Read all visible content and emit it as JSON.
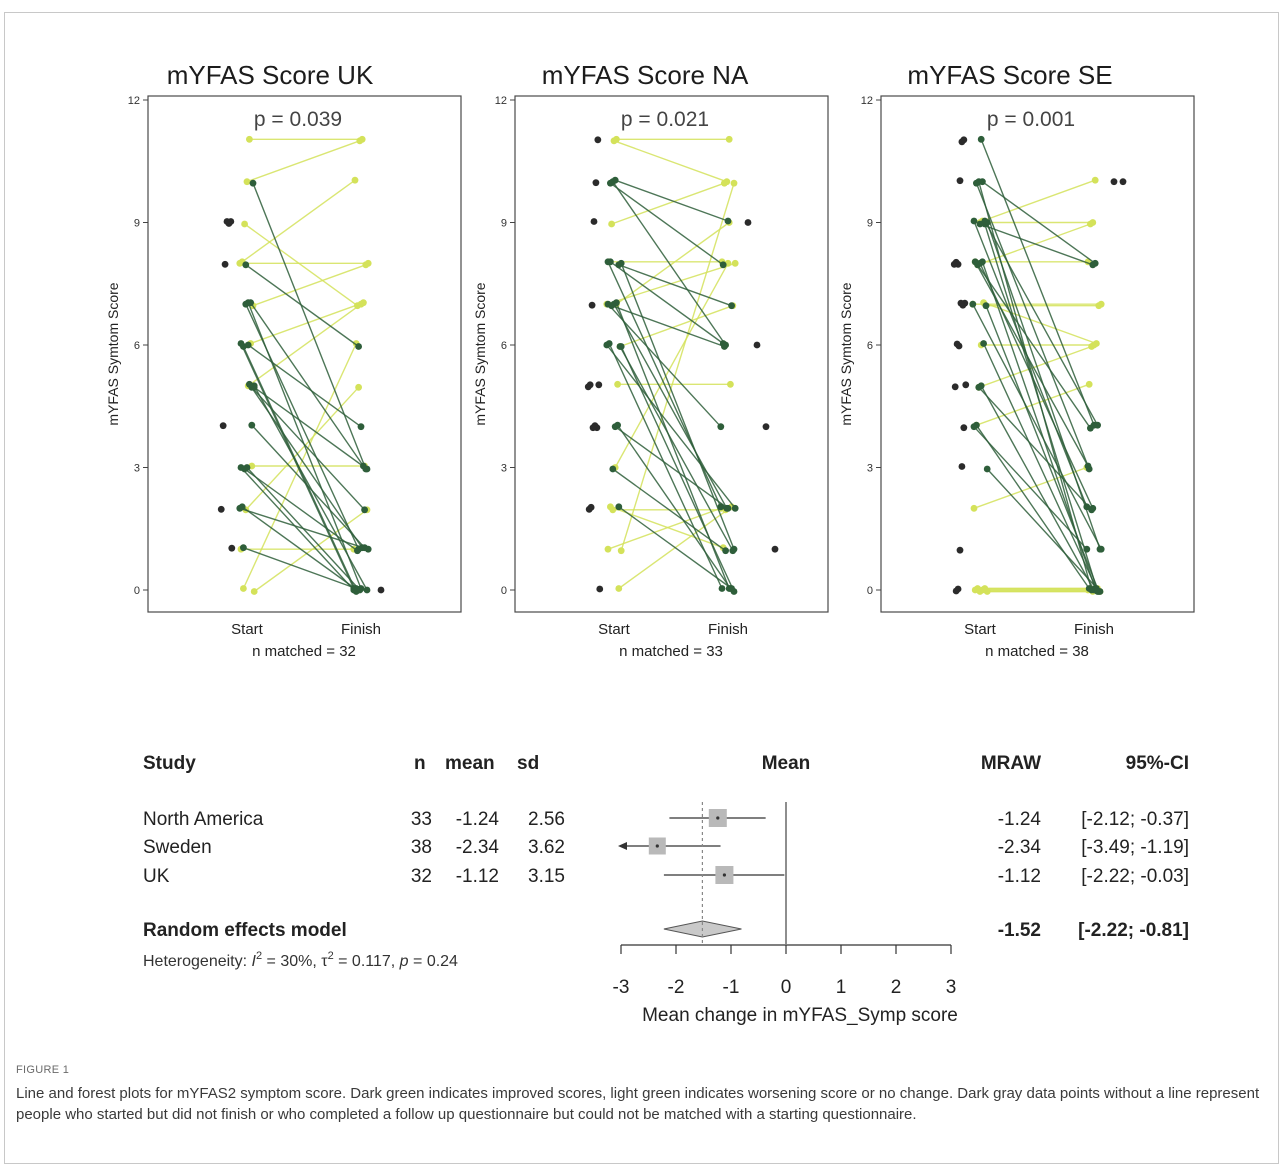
{
  "caption": {
    "label": "FIGURE 1",
    "text": "Line and forest plots for mYFAS2 symptom score. Dark green indicates improved scores, light green indicates worsening score or no change. Dark gray data points without a line represent people who started but did not finish or who completed a follow up questionnaire but could not be matched with a starting questionnaire."
  },
  "colors": {
    "improved": "#2e5e3a",
    "worsened": "#d4e25a",
    "unmatched": "#2b2b2b",
    "box": "#b9b9b9",
    "diamond": "#c9c9c9"
  },
  "chart_data": [
    {
      "type": "line",
      "title": "mYFAS Score UK",
      "annotation": "p = 0.039",
      "ylabel": "mYFAS Symtom Score",
      "categories": [
        "Start",
        "Finish"
      ],
      "footer": "n matched = 32",
      "ylim": [
        0,
        12
      ],
      "yticks": [
        0,
        3,
        6,
        9,
        12
      ],
      "improved": [
        [
          7,
          0
        ],
        [
          7,
          1
        ],
        [
          6,
          0
        ],
        [
          6,
          0
        ],
        [
          5,
          0
        ],
        [
          5,
          2
        ],
        [
          5,
          1
        ],
        [
          3,
          0
        ],
        [
          3,
          1
        ],
        [
          2,
          0
        ],
        [
          2,
          1
        ],
        [
          10,
          3
        ],
        [
          7,
          3
        ],
        [
          6,
          4
        ],
        [
          8,
          6
        ],
        [
          1,
          0
        ],
        [
          3,
          0
        ],
        [
          5,
          3
        ],
        [
          4,
          1
        ]
      ],
      "worsened": [
        [
          11,
          11
        ],
        [
          10,
          11
        ],
        [
          9,
          7
        ],
        [
          8,
          10
        ],
        [
          8,
          8
        ],
        [
          7,
          8
        ],
        [
          6,
          7
        ],
        [
          5,
          7
        ],
        [
          2,
          5
        ],
        [
          0,
          6
        ],
        [
          1,
          1
        ],
        [
          0,
          2
        ],
        [
          3,
          3
        ]
      ],
      "unmatched_start": [
        9,
        9,
        9,
        8,
        4,
        2,
        1
      ],
      "unmatched_finish": [
        0
      ]
    },
    {
      "type": "line",
      "title": "mYFAS Score NA",
      "annotation": "p = 0.021",
      "ylabel": "mYFAS Symtom Score",
      "categories": [
        "Start",
        "Finish"
      ],
      "footer": "n matched = 33",
      "ylim": [
        0,
        12
      ],
      "yticks": [
        0,
        3,
        6,
        9,
        12
      ],
      "improved": [
        [
          10,
          9
        ],
        [
          10,
          6
        ],
        [
          10,
          8
        ],
        [
          8,
          2
        ],
        [
          8,
          1
        ],
        [
          8,
          7
        ],
        [
          7,
          0
        ],
        [
          7,
          2
        ],
        [
          7,
          6
        ],
        [
          6,
          0
        ],
        [
          6,
          2
        ],
        [
          6,
          1
        ],
        [
          4,
          0
        ],
        [
          4,
          2
        ],
        [
          3,
          1
        ],
        [
          8,
          6
        ],
        [
          7,
          4
        ],
        [
          6,
          0
        ],
        [
          2,
          0
        ]
      ],
      "worsened": [
        [
          11,
          11
        ],
        [
          11,
          10
        ],
        [
          9,
          10
        ],
        [
          8,
          8
        ],
        [
          7,
          8
        ],
        [
          6,
          7
        ],
        [
          5,
          5
        ],
        [
          3,
          8
        ],
        [
          2,
          2
        ],
        [
          2,
          1
        ],
        [
          1,
          2
        ],
        [
          1,
          10
        ],
        [
          0,
          2
        ],
        [
          7,
          9
        ]
      ],
      "unmatched_start": [
        11,
        10,
        9,
        7,
        5,
        5,
        5,
        4,
        4,
        4,
        2,
        2,
        0
      ],
      "unmatched_finish": [
        9,
        6,
        4,
        1
      ]
    },
    {
      "type": "line",
      "title": "mYFAS Score SE",
      "annotation": "p = 0.001",
      "ylabel": "mYFAS Symtom Score",
      "categories": [
        "Start",
        "Finish"
      ],
      "footer": "n matched = 38",
      "ylim": [
        0,
        12
      ],
      "yticks": [
        0,
        3,
        6,
        9,
        12
      ],
      "improved": [
        [
          11,
          4
        ],
        [
          10,
          0
        ],
        [
          10,
          3
        ],
        [
          9,
          2
        ],
        [
          9,
          1
        ],
        [
          9,
          0
        ],
        [
          8,
          0
        ],
        [
          8,
          2
        ],
        [
          8,
          4
        ],
        [
          8,
          3
        ],
        [
          7,
          1
        ],
        [
          7,
          0
        ],
        [
          6,
          0
        ],
        [
          5,
          0
        ],
        [
          5,
          2
        ],
        [
          4,
          0
        ],
        [
          4,
          1
        ],
        [
          3,
          0
        ],
        [
          9,
          4
        ],
        [
          10,
          8
        ],
        [
          9,
          8
        ]
      ],
      "worsened": [
        [
          9,
          10
        ],
        [
          9,
          9
        ],
        [
          8,
          9
        ],
        [
          8,
          8
        ],
        [
          7,
          7
        ],
        [
          7,
          7
        ],
        [
          7,
          6
        ],
        [
          6,
          6
        ],
        [
          5,
          6
        ],
        [
          4,
          5
        ],
        [
          2,
          3
        ],
        [
          0,
          0
        ],
        [
          0,
          0
        ],
        [
          0,
          0
        ],
        [
          0,
          0
        ],
        [
          0,
          0
        ],
        [
          0,
          0
        ]
      ],
      "unmatched_start": [
        11,
        11,
        10,
        8,
        8,
        8,
        7,
        7,
        7,
        6,
        6,
        5,
        5,
        4,
        3,
        1,
        0,
        0
      ],
      "unmatched_finish": [
        10,
        10
      ]
    },
    {
      "type": "table",
      "subtype": "forest",
      "headers": [
        "Study",
        "n",
        "mean",
        "sd",
        "Mean",
        "MRAW",
        "95%-CI"
      ],
      "rows": [
        {
          "study": "North America",
          "n": "33",
          "mean": "-1.24",
          "sd": "2.56",
          "mraw": "-1.24",
          "ci": "[-2.12; -0.37]",
          "est": -1.24,
          "lo": -2.12,
          "hi": -0.37,
          "weight": 0.9
        },
        {
          "study": "Sweden",
          "n": "38",
          "mean": "-2.34",
          "sd": "3.62",
          "mraw": "-2.34",
          "ci": "[-3.49; -1.19]",
          "est": -2.34,
          "lo": -3.49,
          "hi": -1.19,
          "weight": 0.85
        },
        {
          "study": "UK",
          "n": "32",
          "mean": "-1.12",
          "sd": "3.15",
          "mraw": "-1.12",
          "ci": "[-2.22; -0.03]",
          "est": -1.12,
          "lo": -2.22,
          "hi": -0.03,
          "weight": 0.9
        }
      ],
      "model": {
        "label": "Random effects model",
        "mraw": "-1.52",
        "ci": "[-2.22; -0.81]",
        "est": -1.52,
        "lo": -2.22,
        "hi": -0.81
      },
      "heterogeneity": {
        "prefix": "Heterogeneity: ",
        "i2_symbol": "I",
        "i2_sup": "2",
        "i2_rest": " = 30%, τ",
        "tau_sup": "2",
        "tau_rest": " = 0.117, ",
        "p_symbol": "p",
        "p_rest": " = 0.24"
      },
      "xlim": [
        -3,
        3
      ],
      "xticks": [
        "-3",
        "-2",
        "-1",
        "0",
        "1",
        "2",
        "3"
      ],
      "xlabel": "Mean change in mYFAS_Symp score",
      "reference_line": -1.52
    }
  ]
}
